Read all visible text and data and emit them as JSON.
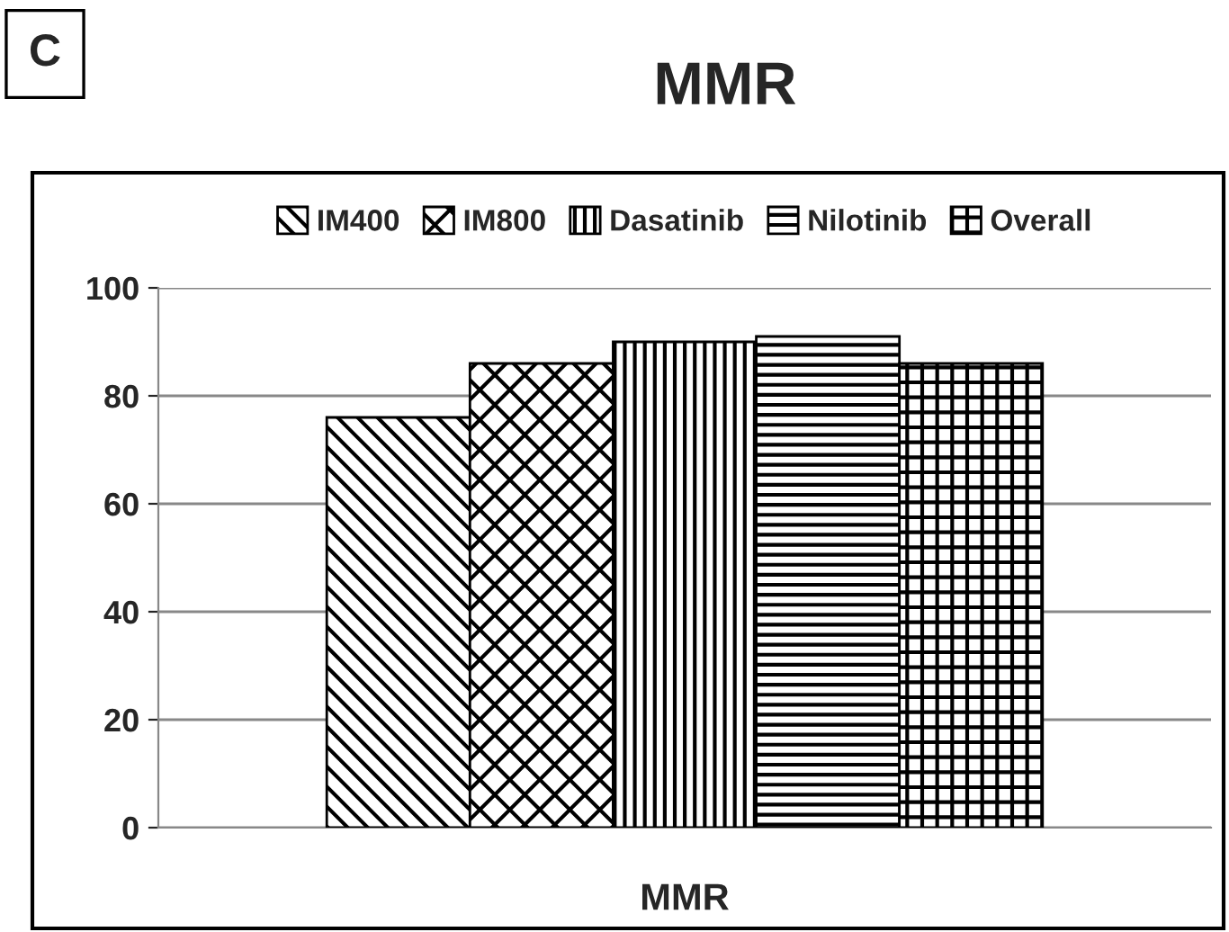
{
  "chart_data": {
    "type": "bar",
    "title": "MMR",
    "categories": [
      "MMR"
    ],
    "series": [
      {
        "name": "IM400",
        "color": "#000000",
        "values": [
          76
        ]
      },
      {
        "name": "IM800",
        "color": "#000000",
        "values": [
          86
        ]
      },
      {
        "name": "Dasatinib",
        "color": "#000000",
        "values": [
          90
        ]
      },
      {
        "name": "Nilotinib",
        "color": "#000000",
        "values": [
          91
        ]
      },
      {
        "name": "Overall",
        "color": "#000000",
        "values": [
          86
        ]
      }
    ],
    "ylim": [
      0,
      100
    ],
    "yticks": [
      0,
      20,
      40,
      60,
      80,
      100
    ],
    "grid": "y",
    "legend": "top",
    "annotations": [
      "C"
    ]
  }
}
